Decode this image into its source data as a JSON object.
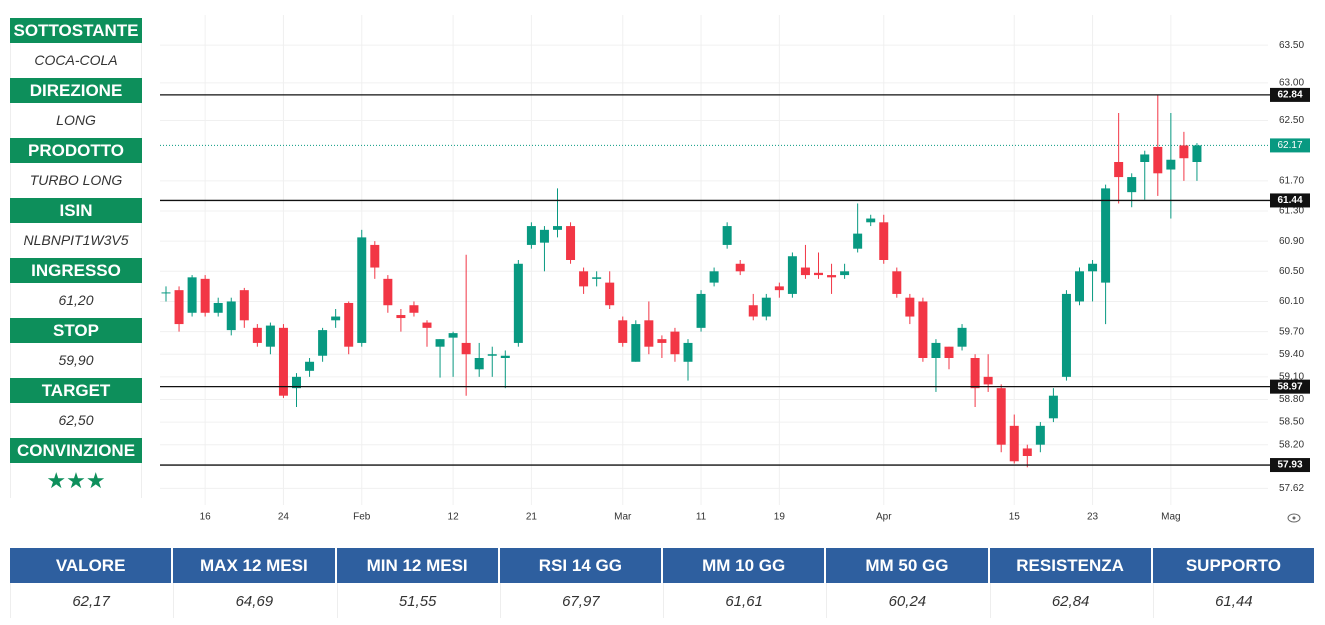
{
  "panel": [
    {
      "label": "SOTTOSTANTE",
      "value": "COCA-COLA"
    },
    {
      "label": "DIREZIONE",
      "value": "LONG"
    },
    {
      "label": "PRODOTTO",
      "value": "TURBO LONG"
    },
    {
      "label": "ISIN",
      "value": "NLBNPIT1W3V5"
    },
    {
      "label": "INGRESSO",
      "value": "61,20"
    },
    {
      "label": "STOP",
      "value": "59,90"
    },
    {
      "label": "TARGET",
      "value": "62,50"
    },
    {
      "label": "CONVINZIONE",
      "value": "★★★"
    }
  ],
  "chart_data": {
    "type": "candlestick",
    "categories": [
      null,
      null,
      null,
      "16",
      null,
      null,
      null,
      null,
      null,
      "24",
      null,
      null,
      null,
      null,
      null,
      "Feb",
      null,
      null,
      null,
      null,
      null,
      null,
      "12",
      null,
      null,
      null,
      null,
      null,
      "21",
      null,
      null,
      null,
      null,
      null,
      null,
      "Mar",
      null,
      null,
      null,
      null,
      null,
      "11",
      null,
      null,
      null,
      null,
      null,
      "19",
      null,
      null,
      null,
      null,
      null,
      null,
      null,
      "Apr",
      null,
      null,
      null,
      null,
      null,
      null,
      null,
      null,
      null,
      "15",
      null,
      null,
      null,
      null,
      null,
      "23",
      null,
      null,
      null,
      null,
      null,
      "Mag",
      null,
      null
    ],
    "open": [
      60.22,
      60.25,
      59.95,
      60.4,
      59.95,
      59.72,
      60.25,
      59.75,
      59.5,
      59.75,
      58.95,
      59.18,
      59.38,
      59.85,
      60.08,
      59.55,
      60.85,
      60.4,
      59.92,
      60.05,
      59.82,
      59.5,
      59.62,
      59.55,
      59.2,
      59.38,
      59.35,
      59.55,
      60.85,
      60.88,
      61.05,
      61.1,
      60.5,
      60.4,
      60.35,
      59.85,
      59.3,
      59.85,
      59.6,
      59.7,
      59.3,
      59.75,
      60.35,
      60.85,
      60.6,
      60.05,
      59.9,
      60.3,
      60.2,
      60.55,
      60.48,
      60.45,
      60.45,
      60.8,
      61.15,
      61.15,
      60.5,
      60.15,
      60.1,
      59.35,
      59.5,
      59.5,
      59.35,
      59.1,
      58.95,
      58.45,
      58.15,
      58.2,
      58.55,
      59.1,
      60.1,
      60.5,
      60.35,
      61.95,
      61.55,
      61.95,
      62.15,
      61.85,
      62.17,
      61.95
    ],
    "high": [
      60.3,
      60.3,
      60.45,
      60.45,
      60.15,
      60.15,
      60.28,
      59.8,
      59.82,
      59.8,
      59.15,
      59.35,
      59.75,
      60.0,
      60.1,
      61.05,
      60.9,
      60.45,
      60.0,
      60.1,
      59.85,
      59.6,
      59.7,
      60.72,
      59.55,
      59.5,
      59.45,
      60.65,
      61.15,
      61.1,
      61.6,
      61.15,
      60.55,
      60.5,
      60.5,
      59.9,
      59.85,
      60.1,
      59.65,
      59.75,
      59.6,
      60.25,
      60.55,
      61.15,
      60.65,
      60.2,
      60.2,
      60.35,
      60.75,
      60.85,
      60.75,
      60.6,
      60.6,
      61.4,
      61.25,
      61.25,
      60.55,
      60.2,
      60.15,
      59.6,
      59.5,
      59.8,
      59.4,
      59.4,
      59.0,
      58.6,
      58.2,
      58.5,
      58.95,
      60.25,
      60.55,
      60.65,
      61.65,
      62.6,
      61.8,
      62.1,
      62.84,
      62.6,
      62.35,
      62.2
    ],
    "low": [
      60.1,
      59.7,
      59.9,
      59.9,
      59.9,
      59.65,
      59.75,
      59.5,
      59.4,
      58.82,
      58.7,
      59.1,
      59.3,
      59.75,
      59.4,
      59.5,
      60.4,
      59.95,
      59.7,
      59.9,
      59.5,
      59.09,
      59.1,
      58.85,
      59.1,
      59.1,
      58.95,
      59.5,
      60.8,
      60.5,
      60.95,
      60.6,
      60.2,
      60.3,
      60.0,
      59.5,
      59.3,
      59.4,
      59.35,
      59.3,
      59.05,
      59.7,
      60.3,
      60.8,
      60.45,
      59.85,
      59.85,
      60.15,
      60.15,
      60.4,
      60.4,
      60.2,
      60.4,
      60.75,
      61.1,
      60.6,
      60.15,
      59.8,
      59.3,
      58.9,
      59.2,
      59.45,
      58.7,
      58.9,
      58.1,
      57.95,
      57.9,
      58.1,
      58.5,
      59.05,
      60.05,
      60.1,
      59.8,
      61.4,
      61.35,
      61.45,
      61.5,
      61.2,
      61.7,
      61.7
    ],
    "close": [
      60.22,
      59.8,
      60.42,
      59.95,
      60.08,
      60.1,
      59.85,
      59.55,
      59.78,
      58.85,
      59.1,
      59.3,
      59.72,
      59.9,
      59.5,
      60.95,
      60.55,
      60.05,
      59.88,
      59.95,
      59.75,
      59.6,
      59.68,
      59.4,
      59.35,
      59.4,
      59.38,
      60.6,
      61.1,
      61.05,
      61.1,
      60.65,
      60.3,
      60.42,
      60.05,
      59.55,
      59.8,
      59.5,
      59.55,
      59.4,
      59.55,
      60.2,
      60.5,
      61.1,
      60.5,
      59.9,
      60.15,
      60.25,
      60.7,
      60.45,
      60.45,
      60.42,
      60.5,
      61.0,
      61.2,
      60.65,
      60.2,
      59.9,
      59.35,
      59.55,
      59.35,
      59.75,
      58.95,
      59.0,
      58.2,
      57.98,
      58.05,
      58.45,
      58.85,
      60.2,
      60.5,
      60.6,
      61.6,
      61.75,
      61.75,
      62.05,
      61.8,
      61.98,
      62.0,
      62.17
    ],
    "up_color": "#089981",
    "down_color": "#f23645",
    "ylim": [
      57.4,
      63.9
    ],
    "yticks": [
      {
        "value": 63.5,
        "label": "63.50"
      },
      {
        "value": 63,
        "label": "63.00"
      },
      {
        "value": 62.5,
        "label": "62.50"
      },
      {
        "value": 61.7,
        "label": "61.70"
      },
      {
        "value": 61.3,
        "label": "61.30"
      },
      {
        "value": 60.9,
        "label": "60.90"
      },
      {
        "value": 60.5,
        "label": "60.50"
      },
      {
        "value": 60.1,
        "label": "60.10"
      },
      {
        "value": 59.7,
        "label": "59.70"
      },
      {
        "value": 59.4,
        "label": "59.40"
      },
      {
        "value": 59.1,
        "label": "59.10"
      },
      {
        "value": 58.8,
        "label": "58.80"
      },
      {
        "value": 58.5,
        "label": "58.50"
      },
      {
        "value": 58.2,
        "label": "58.20"
      },
      57.62
    ],
    "levels": [
      62.84,
      61.44,
      58.97,
      57.93
    ],
    "last_price": 62.17,
    "grid": true
  },
  "table": {
    "headers": [
      "VALORE",
      "MAX 12 MESI",
      "MIN 12 MESI",
      "RSI 14 GG",
      "MM 10 GG",
      "MM 50 GG",
      "RESISTENZA",
      "SUPPORTO"
    ],
    "values": [
      "62,17",
      "64,69",
      "51,55",
      "67,97",
      "61,61",
      "60,24",
      "62,84",
      "61,44"
    ]
  }
}
